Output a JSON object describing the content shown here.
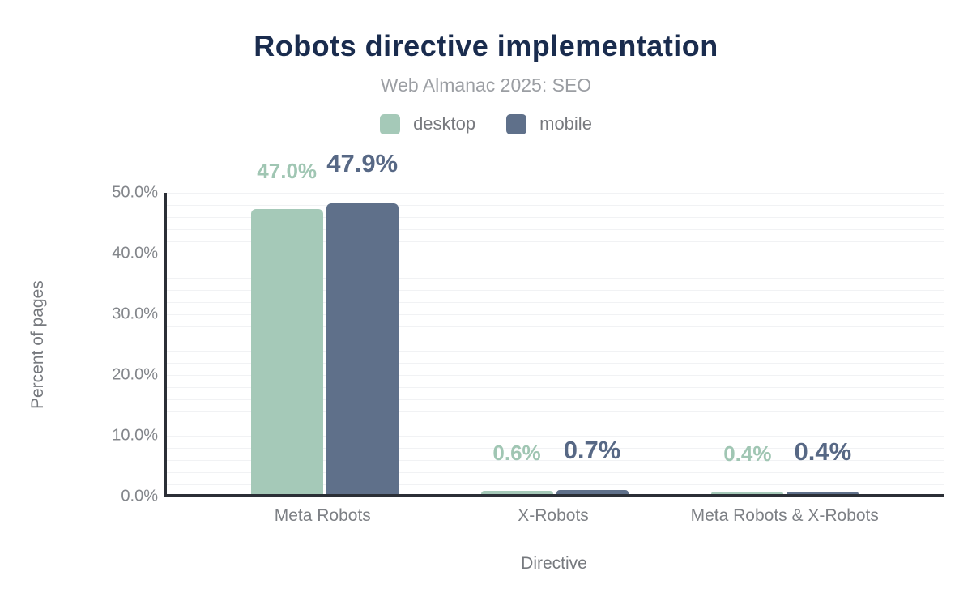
{
  "header": {
    "title": "Robots directive implementation",
    "subtitle": "Web Almanac 2025: SEO"
  },
  "legend": {
    "items": [
      {
        "label": "desktop",
        "color": "#a5c9b8"
      },
      {
        "label": "mobile",
        "color": "#5f708a"
      }
    ]
  },
  "chart_data": {
    "type": "bar",
    "title": "Robots directive implementation",
    "subtitle": "Web Almanac 2025: SEO",
    "categories": [
      "Meta Robots",
      "X-Robots",
      "Meta Robots & X-Robots"
    ],
    "series": [
      {
        "name": "desktop",
        "color": "#a5c9b8",
        "label_color": "#a0c6b3",
        "values": [
          47.0,
          0.6,
          0.4
        ],
        "labels": [
          "47.0%",
          "0.6%",
          "0.4%"
        ]
      },
      {
        "name": "mobile",
        "color": "#5f708a",
        "label_color": "#576885",
        "values": [
          47.9,
          0.7,
          0.4
        ],
        "labels": [
          "47.9%",
          "0.7%",
          "0.4%"
        ]
      }
    ],
    "xlabel": "Directive",
    "ylabel": "Percent of pages",
    "ylim": [
      0,
      50
    ],
    "yticks": [
      "0.0%",
      "10.0%",
      "20.0%",
      "30.0%",
      "40.0%",
      "50.0%"
    ],
    "ytick_values": [
      0,
      10,
      20,
      30,
      40,
      50
    ],
    "grid": "horizontal, minor line every 2%",
    "legend_position": "top-center",
    "colors": {
      "title": "#1a2c4e",
      "axis_line": "#2b2f36",
      "grid_line": "#f1f2f4",
      "tick_text": "#83868b"
    }
  }
}
